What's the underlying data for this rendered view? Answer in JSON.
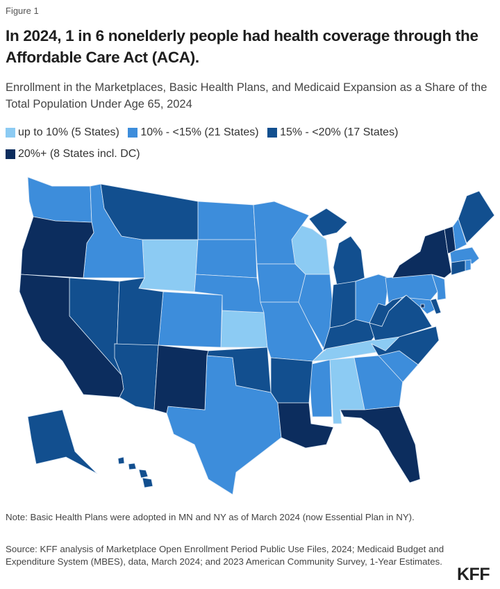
{
  "figure_label": "Figure 1",
  "title": "In 2024, 1 in 6 nonelderly people had health coverage through the Affordable Care Act (ACA).",
  "subtitle": "Enrollment in the Marketplaces, Basic Health Plans, and Medicaid Expansion as a Share of the Total Population Under Age 65, 2024",
  "legend": [
    {
      "label": "up to 10% (5 States)",
      "color": "#8ccbf3"
    },
    {
      "label": "10% - <15% (21 States)",
      "color": "#3d8ddb"
    },
    {
      "label": "15% - <20% (17 States)",
      "color": "#124f8f"
    },
    {
      "label": "20%+ (8 States incl. DC)",
      "color": "#0c2d5e"
    }
  ],
  "note": "Note: Basic Health Plans were adopted in MN and NY as of March 2024 (now Essential Plan in NY).",
  "source": "Source: KFF analysis of Marketplace Open Enrollment Period Public Use Files, 2024; Medicaid Budget and Expenditure System (MBES), data, March 2024; and 2023 American Community Survey, 1-Year Estimates.",
  "logo": "KFF",
  "chart_data": {
    "type": "choropleth",
    "categories": [
      "up to 10%",
      "10% - <15%",
      "15% - <20%",
      "20%+"
    ],
    "states": {
      "WY": 0,
      "WI": 0,
      "KS": 0,
      "TN": 0,
      "AL": 0,
      "WA": 1,
      "ID": 1,
      "ND": 1,
      "SD": 1,
      "NE": 1,
      "CO": 1,
      "MN": 1,
      "IA": 1,
      "MO": 1,
      "IL": 1,
      "OH": 1,
      "PA": 1,
      "NJ": 1,
      "NH": 1,
      "MA": 1,
      "MD": 1,
      "TX": 1,
      "MS": 1,
      "GA": 1,
      "SC": 1,
      "RI": 1,
      "NV": 2,
      "UT": 2,
      "AZ": 2,
      "MT": 2,
      "OK": 2,
      "AR": 2,
      "MI": 2,
      "IN": 2,
      "KY": 2,
      "WV": 2,
      "VA": 2,
      "NC": 2,
      "ME": 2,
      "CT": 2,
      "DE": 2,
      "HI": 2,
      "AK": 2,
      "OR": 3,
      "CA": 3,
      "NM": 3,
      "LA": 3,
      "FL": 3,
      "NY": 3,
      "VT": 3,
      "DC": 3
    }
  }
}
